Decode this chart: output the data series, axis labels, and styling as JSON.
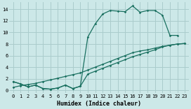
{
  "xlabel": "Humidex (Indice chaleur)",
  "bg_color": "#cce8e8",
  "grid_color": "#aacccc",
  "line_color": "#1a7060",
  "xlim": [
    -0.5,
    23.5
  ],
  "ylim": [
    -0.5,
    15.2
  ],
  "xticks": [
    0,
    1,
    2,
    3,
    4,
    5,
    6,
    7,
    8,
    9,
    10,
    11,
    12,
    13,
    14,
    15,
    16,
    17,
    18,
    19,
    20,
    21,
    22,
    23
  ],
  "yticks": [
    0,
    2,
    4,
    6,
    8,
    10,
    12,
    14
  ],
  "line1_x": [
    0,
    1,
    2,
    3,
    4,
    5,
    6,
    7,
    8,
    9,
    10,
    11,
    12,
    13,
    14,
    15,
    16,
    17,
    18,
    19,
    20,
    21,
    22
  ],
  "line1_y": [
    1.5,
    1.1,
    0.6,
    0.9,
    0.3,
    0.2,
    0.4,
    0.9,
    0.3,
    0.7,
    9.2,
    11.5,
    13.2,
    13.8,
    13.7,
    13.6,
    14.6,
    13.5,
    13.8,
    13.8,
    13.0,
    9.5,
    9.5
  ],
  "line2_x": [
    0,
    1,
    2,
    3,
    4,
    5,
    6,
    7,
    8,
    9,
    10,
    11,
    12,
    13,
    14,
    15,
    16,
    17,
    18,
    19,
    20,
    21,
    22,
    23
  ],
  "line2_y": [
    0.5,
    0.8,
    1.0,
    1.2,
    1.5,
    1.8,
    2.1,
    2.4,
    2.7,
    3.0,
    3.5,
    4.0,
    4.5,
    5.0,
    5.5,
    6.0,
    6.5,
    6.8,
    7.0,
    7.3,
    7.6,
    7.8,
    8.0,
    8.1
  ],
  "line3_x": [
    0,
    1,
    2,
    3,
    4,
    5,
    6,
    7,
    8,
    9,
    10,
    11,
    12,
    13,
    14,
    15,
    16,
    17,
    18,
    19,
    20,
    21,
    22,
    23
  ],
  "line3_y": [
    1.5,
    1.1,
    0.6,
    0.9,
    0.3,
    0.2,
    0.4,
    0.9,
    0.3,
    0.7,
    2.8,
    3.3,
    3.8,
    4.3,
    4.8,
    5.3,
    5.8,
    6.2,
    6.6,
    7.0,
    7.5,
    7.8,
    8.0,
    8.1
  ]
}
